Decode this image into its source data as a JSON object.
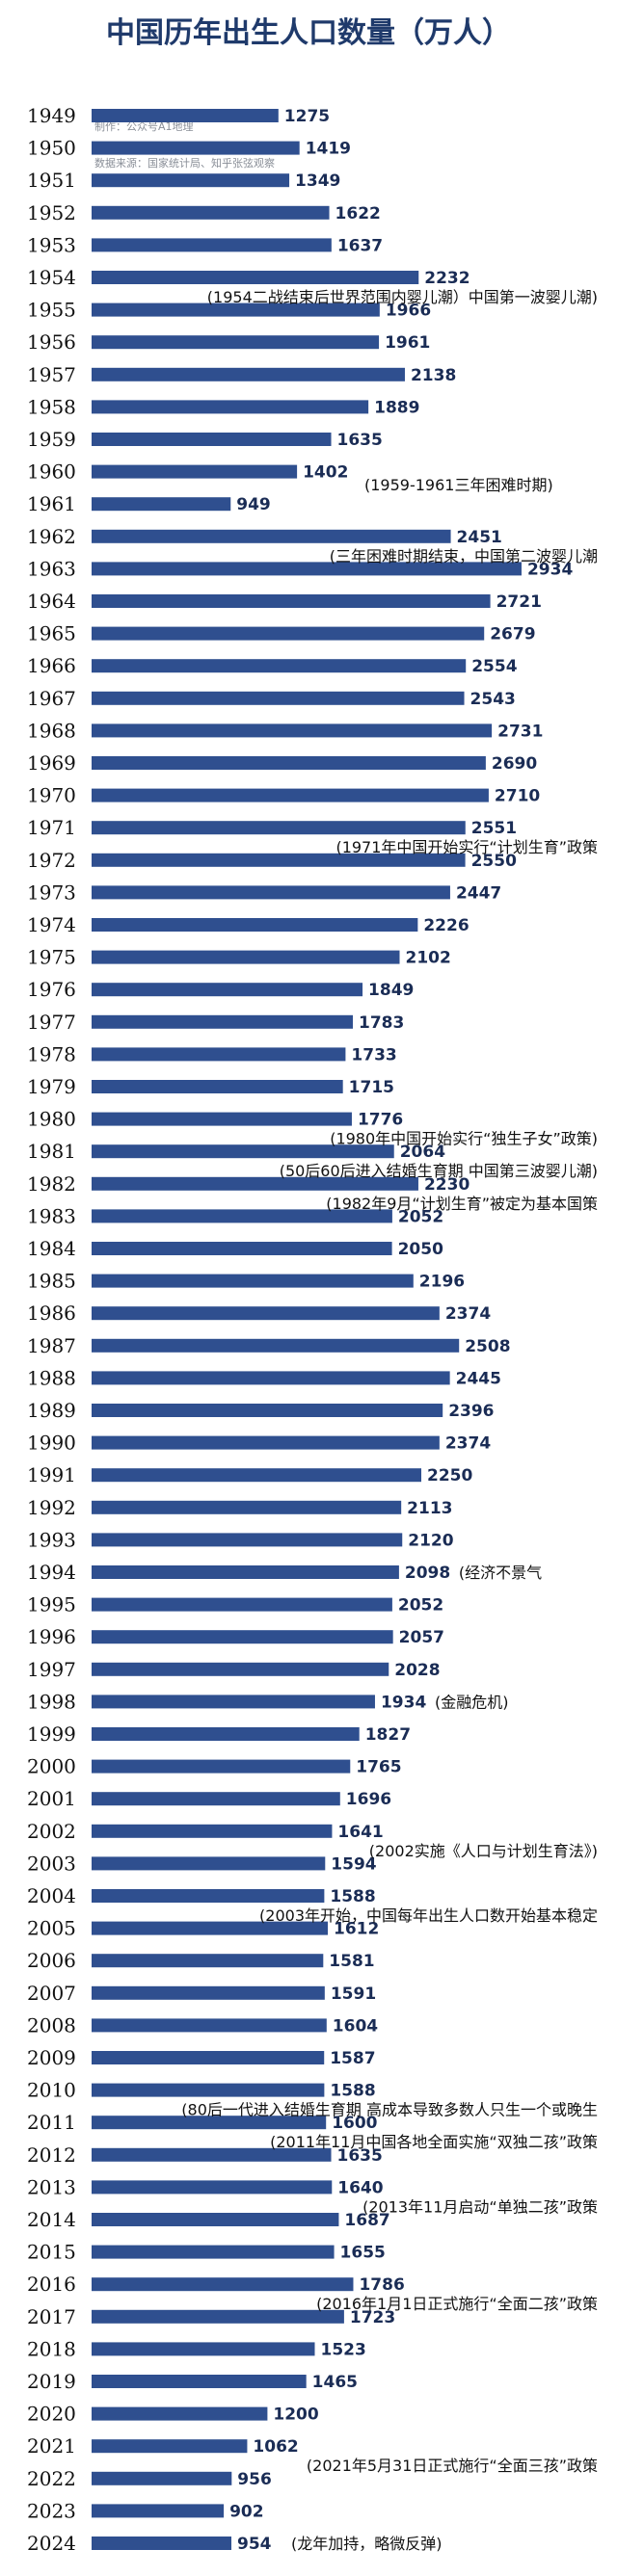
{
  "chart_data": {
    "type": "bar",
    "orientation": "horizontal",
    "title": "中国历年出生人口数量（万人）",
    "credits": {
      "maker": "制作：公众号A1地理",
      "source": "数据来源：国家统计局、知乎张弦观察"
    },
    "categories": [
      "1949",
      "1950",
      "1951",
      "1952",
      "1953",
      "1954",
      "1955",
      "1956",
      "1957",
      "1958",
      "1959",
      "1960",
      "1961",
      "1962",
      "1963",
      "1964",
      "1965",
      "1966",
      "1967",
      "1968",
      "1969",
      "1970",
      "1971",
      "1972",
      "1973",
      "1974",
      "1975",
      "1976",
      "1977",
      "1978",
      "1979",
      "1980",
      "1981",
      "1982",
      "1983",
      "1984",
      "1985",
      "1986",
      "1987",
      "1988",
      "1989",
      "1990",
      "1991",
      "1992",
      "1993",
      "1994",
      "1995",
      "1996",
      "1997",
      "1998",
      "1999",
      "2000",
      "2001",
      "2002",
      "2003",
      "2004",
      "2005",
      "2006",
      "2007",
      "2008",
      "2009",
      "2010",
      "2011",
      "2012",
      "2013",
      "2014",
      "2015",
      "2016",
      "2017",
      "2018",
      "2019",
      "2020",
      "2021",
      "2022",
      "2023",
      "2024"
    ],
    "values": [
      1275,
      1419,
      1349,
      1622,
      1637,
      2232,
      1966,
      1961,
      2138,
      1889,
      1635,
      1402,
      949,
      2451,
      2934,
      2721,
      2679,
      2554,
      2543,
      2731,
      2690,
      2710,
      2551,
      2550,
      2447,
      2226,
      2102,
      1849,
      1783,
      1733,
      1715,
      1776,
      2064,
      2230,
      2052,
      2050,
      2196,
      2374,
      2508,
      2445,
      2396,
      2374,
      2250,
      2113,
      2120,
      2098,
      2052,
      2057,
      2028,
      1934,
      1827,
      1765,
      1696,
      1641,
      1594,
      1588,
      1612,
      1581,
      1591,
      1604,
      1587,
      1588,
      1600,
      1635,
      1640,
      1687,
      1655,
      1786,
      1723,
      1523,
      1465,
      1200,
      1062,
      956,
      902,
      954
    ],
    "xlim": [
      0,
      3000
    ],
    "annotations": [
      {
        "year": "1954",
        "text": "(1954二战结束后世界范围内婴儿潮）中国第一波婴儿潮)",
        "placement": "below"
      },
      {
        "year": "1961",
        "text": "(1959-1961三年困难时期)",
        "placement": "above"
      },
      {
        "year": "1962",
        "text": "(三年困难时期结束，中国第二波婴儿潮",
        "placement": "below"
      },
      {
        "year": "1971",
        "text": "(1971年中国开始实行“计划生育”政策",
        "placement": "below"
      },
      {
        "year": "1980",
        "text": "(1980年中国开始实行“独生子女”政策)",
        "placement": "below"
      },
      {
        "year": "1981",
        "text": "(50后60后进入结婚生育期 中国第三波婴儿潮)",
        "placement": "below"
      },
      {
        "year": "1982",
        "text": "(1982年9月“计划生育”被定为基本国策",
        "placement": "below"
      },
      {
        "year": "1994",
        "text": "(经济不景气",
        "placement": "right"
      },
      {
        "year": "1998",
        "text": "(金融危机)",
        "placement": "right"
      },
      {
        "year": "2002",
        "text": "(2002实施《人口与计划生育法》)",
        "placement": "below"
      },
      {
        "year": "2004",
        "text": "(2003年开始，中国每年出生人口数开始基本稳定",
        "placement": "below"
      },
      {
        "year": "2010",
        "text": "(80后一代进入结婚生育期 高成本导致多数人只生一个或晚生",
        "placement": "below"
      },
      {
        "year": "2011",
        "text": "(2011年11月中国各地全面实施“双独二孩”政策",
        "placement": "below"
      },
      {
        "year": "2013",
        "text": "(2013年11月启动“单独二孩”政策",
        "placement": "below"
      },
      {
        "year": "2016",
        "text": "(2016年1月1日正式施行“全面二孩”政策",
        "placement": "below"
      },
      {
        "year": "2021",
        "text": "(2021年5月31日正式施行“全面三孩”政策",
        "placement": "below"
      },
      {
        "year": "2024",
        "text": "(龙年加持，略微反弹)",
        "placement": "right"
      }
    ]
  }
}
